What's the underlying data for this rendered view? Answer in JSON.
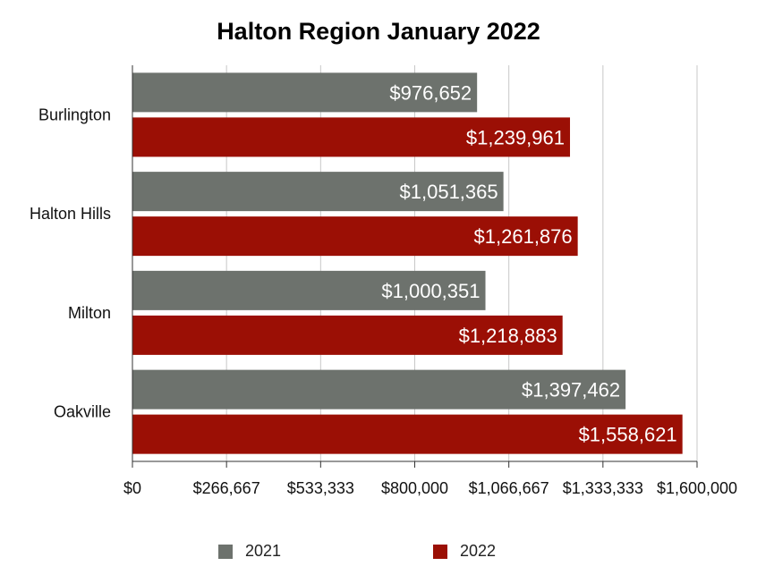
{
  "chart_data": {
    "type": "bar",
    "orientation": "horizontal",
    "title": "Halton Region January 2022",
    "categories": [
      "Burlington",
      "Halton Hills",
      "Milton",
      "Oakville"
    ],
    "series": [
      {
        "name": "2021",
        "color": "#6d726d",
        "values": [
          976652,
          1051365,
          1000351,
          1397462
        ],
        "labels": [
          "$976,652",
          "$1,051,365",
          "$1,000,351",
          "$1,397,462"
        ]
      },
      {
        "name": "2022",
        "color": "#9b0f05",
        "values": [
          1239961,
          1261876,
          1218883,
          1558621
        ],
        "labels": [
          "$1,239,961",
          "$1,261,876",
          "$1,218,883",
          "$1,558,621"
        ]
      }
    ],
    "xlim": [
      0,
      1600000
    ],
    "x_ticks": [
      0,
      266667,
      533333,
      800000,
      1066667,
      1333333,
      1600000
    ],
    "x_tick_labels": [
      "$0",
      "$266,667",
      "$533,333",
      "$800,000",
      "$1,066,667",
      "$1,333,333",
      "$1,600,000"
    ],
    "grid": true,
    "legend_position": "bottom"
  }
}
